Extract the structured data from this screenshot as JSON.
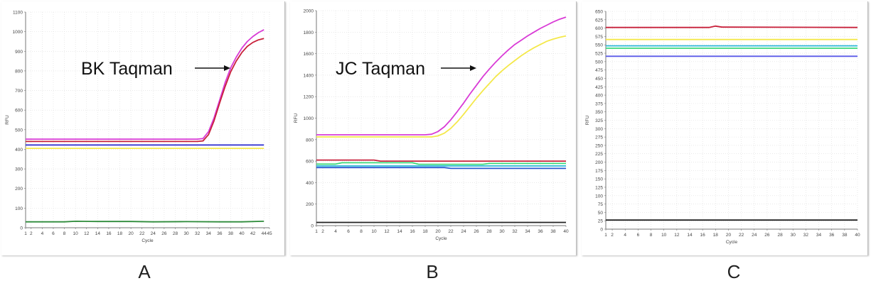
{
  "chart_data": [
    {
      "type": "line",
      "panel_label": "A",
      "title": "",
      "xlabel": "Cycle",
      "ylabel": "RFU",
      "xlim": [
        1,
        45
      ],
      "ylim": [
        0,
        1100
      ],
      "xticks": [
        "1",
        "2",
        "4",
        "6",
        "8",
        "10",
        "12",
        "14",
        "16",
        "18",
        "20",
        "22",
        "24",
        "26",
        "28",
        "30",
        "32",
        "34",
        "36",
        "38",
        "40",
        "42",
        "44",
        "45"
      ],
      "yticks": [
        0,
        100,
        200,
        300,
        400,
        500,
        600,
        700,
        800,
        900,
        1000,
        1100
      ],
      "annotation": {
        "text": "BK Taqman"
      },
      "grid": true,
      "series": [
        {
          "color": "#d93bd6",
          "x": [
            1,
            32,
            33,
            34,
            35,
            36,
            37,
            38,
            39,
            40,
            41,
            42,
            43,
            44
          ],
          "y": [
            452,
            452,
            455,
            490,
            560,
            650,
            740,
            815,
            870,
            915,
            950,
            975,
            995,
            1010
          ]
        },
        {
          "color": "#c8203a",
          "x": [
            1,
            32,
            33,
            34,
            35,
            36,
            37,
            38,
            39,
            40,
            41,
            42,
            43,
            44
          ],
          "y": [
            440,
            440,
            443,
            475,
            545,
            635,
            720,
            795,
            850,
            893,
            925,
            945,
            958,
            965
          ]
        },
        {
          "color": "#2b2bd0",
          "x": [
            1,
            44
          ],
          "y": [
            422,
            422
          ]
        },
        {
          "color": "#f4e84a",
          "x": [
            1,
            44
          ],
          "y": [
            405,
            405
          ]
        },
        {
          "color": "#2e8b3a",
          "x": [
            1,
            8,
            10,
            14,
            20,
            24,
            30,
            36,
            40,
            44
          ],
          "y": [
            30,
            30,
            33,
            32,
            32,
            30,
            31,
            30,
            30,
            33
          ]
        }
      ]
    },
    {
      "type": "line",
      "panel_label": "B",
      "title": "",
      "xlabel": "Cycle",
      "ylabel": "RFU",
      "xlim": [
        1,
        40
      ],
      "ylim": [
        0,
        2000
      ],
      "xticks": [
        "1",
        "2",
        "4",
        "6",
        "8",
        "10",
        "12",
        "14",
        "16",
        "18",
        "20",
        "22",
        "24",
        "26",
        "28",
        "30",
        "32",
        "34",
        "36",
        "38",
        "40"
      ],
      "yticks": [
        0,
        200,
        400,
        600,
        800,
        1000,
        1200,
        1400,
        1600,
        1800,
        2000
      ],
      "annotation": {
        "text": "JC Taqman"
      },
      "grid": true,
      "series": [
        {
          "color": "#d93bd6",
          "x": [
            1,
            18,
            19,
            20,
            21,
            22,
            23,
            24,
            25,
            26,
            27,
            28,
            29,
            30,
            31,
            32,
            33,
            34,
            35,
            36,
            37,
            38,
            39,
            40
          ],
          "y": [
            845,
            845,
            850,
            875,
            920,
            985,
            1060,
            1140,
            1225,
            1305,
            1385,
            1455,
            1520,
            1580,
            1635,
            1685,
            1725,
            1765,
            1800,
            1835,
            1865,
            1895,
            1920,
            1940
          ]
        },
        {
          "color": "#f4e84a",
          "x": [
            1,
            19,
            20,
            21,
            22,
            23,
            24,
            25,
            26,
            27,
            28,
            29,
            30,
            31,
            32,
            33,
            34,
            35,
            36,
            37,
            38,
            39,
            40
          ],
          "y": [
            825,
            825,
            835,
            860,
            905,
            965,
            1035,
            1110,
            1185,
            1255,
            1320,
            1385,
            1440,
            1490,
            1535,
            1580,
            1620,
            1655,
            1685,
            1715,
            1735,
            1752,
            1765
          ]
        },
        {
          "color": "#c8203a",
          "x": [
            1,
            10,
            11,
            40
          ],
          "y": [
            610,
            610,
            600,
            600
          ]
        },
        {
          "color": "#3cd87a",
          "x": [
            1,
            4,
            5,
            16,
            17,
            27,
            28,
            40
          ],
          "y": [
            572,
            572,
            585,
            585,
            570,
            570,
            578,
            578
          ]
        },
        {
          "color": "#2ab8d8",
          "x": [
            1,
            40
          ],
          "y": [
            555,
            555
          ]
        },
        {
          "color": "#2b5bd0",
          "x": [
            1,
            21,
            22,
            40
          ],
          "y": [
            540,
            540,
            532,
            532
          ]
        },
        {
          "color": "#222222",
          "x": [
            1,
            40
          ],
          "y": [
            30,
            30
          ]
        }
      ]
    },
    {
      "type": "line",
      "panel_label": "C",
      "title": "",
      "xlabel": "Cycle",
      "ylabel": "RFU",
      "xlim": [
        1,
        40
      ],
      "ylim": [
        0,
        650
      ],
      "xticks": [
        "1",
        "2",
        "4",
        "6",
        "8",
        "10",
        "12",
        "14",
        "16",
        "18",
        "20",
        "22",
        "24",
        "26",
        "28",
        "30",
        "32",
        "34",
        "36",
        "38",
        "40"
      ],
      "yticks": [
        0,
        25,
        50,
        75,
        100,
        125,
        150,
        175,
        200,
        225,
        250,
        275,
        300,
        325,
        350,
        375,
        400,
        425,
        450,
        475,
        500,
        525,
        550,
        575,
        600,
        625,
        650
      ],
      "grid": true,
      "series": [
        {
          "color": "#c8203a",
          "x": [
            1,
            17,
            18,
            19,
            40
          ],
          "y": [
            602,
            602,
            606,
            603,
            602
          ]
        },
        {
          "color": "#f4e84a",
          "x": [
            1,
            40
          ],
          "y": [
            566,
            566
          ]
        },
        {
          "color": "#2ab8d8",
          "x": [
            1,
            40
          ],
          "y": [
            547,
            547
          ]
        },
        {
          "color": "#3cd87a",
          "x": [
            1,
            40
          ],
          "y": [
            540,
            540
          ]
        },
        {
          "color": "#5a5ae8",
          "x": [
            1,
            40
          ],
          "y": [
            516,
            516
          ]
        },
        {
          "color": "#222222",
          "x": [
            1,
            40
          ],
          "y": [
            27,
            27
          ]
        }
      ]
    }
  ],
  "panel_labels": [
    "A",
    "B",
    "C"
  ]
}
